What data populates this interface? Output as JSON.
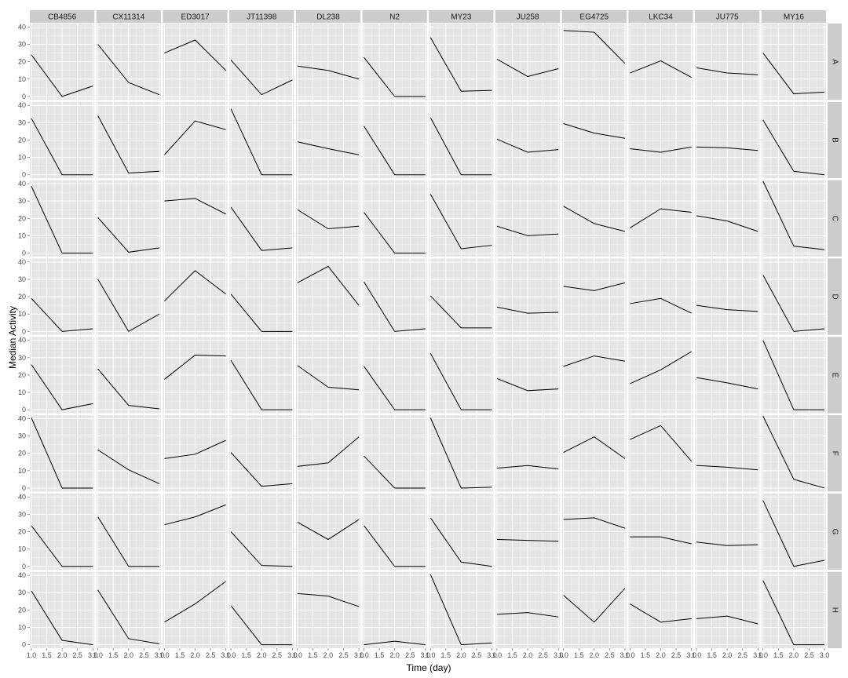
{
  "chart_data": {
    "type": "line",
    "facet_layout": "grid",
    "x": [
      1,
      2,
      3
    ],
    "xlim": [
      0.95,
      3.05
    ],
    "ylim": [
      -2,
      42
    ],
    "xticks": [
      1.0,
      1.5,
      2.0,
      2.5,
      3.0
    ],
    "xtick_labels": [
      "1.0",
      "1.5",
      "2.0",
      "2.5",
      "3.0"
    ],
    "yticks": [
      0,
      10,
      20,
      30,
      40
    ],
    "ytick_labels": [
      "0",
      "10",
      "20",
      "30",
      "40"
    ],
    "xlabel": "Time (day)",
    "ylabel": "Median Activity",
    "grid": true,
    "col_facets": [
      "CB4856",
      "CX11314",
      "ED3017",
      "JT11398",
      "DL238",
      "N2",
      "MY23",
      "JU258",
      "EG4725",
      "LKC34",
      "JU775",
      "MY16"
    ],
    "row_facets": [
      "A",
      "B",
      "C",
      "D",
      "E",
      "F",
      "G",
      "H"
    ],
    "panels": [
      [
        [
          24,
          0,
          6
        ],
        [
          30,
          8,
          1
        ],
        [
          25,
          32.5,
          15
        ],
        [
          21,
          1,
          9.5
        ],
        [
          17.5,
          15,
          10
        ],
        [
          22.5,
          0,
          0
        ],
        [
          34,
          3,
          3.5
        ],
        [
          21.5,
          11.5,
          16
        ],
        [
          38,
          37,
          19
        ],
        [
          13.5,
          20.5,
          11
        ],
        [
          16.5,
          13.5,
          12.5
        ],
        [
          25,
          1.5,
          2.5
        ]
      ],
      [
        [
          32.5,
          0,
          0
        ],
        [
          34,
          1,
          2
        ],
        [
          11.5,
          31,
          26
        ],
        [
          38,
          0,
          0
        ],
        [
          19,
          15,
          11.5
        ],
        [
          28,
          0,
          0
        ],
        [
          33,
          0,
          0
        ],
        [
          20.5,
          13,
          14.5
        ],
        [
          29.5,
          24,
          21
        ],
        [
          15,
          13,
          16
        ],
        [
          16,
          15.5,
          14
        ],
        [
          31.5,
          2,
          0
        ]
      ],
      [
        [
          38.5,
          0,
          0
        ],
        [
          20.5,
          0.5,
          3
        ],
        [
          30,
          31.5,
          22.5
        ],
        [
          26.5,
          1.5,
          3
        ],
        [
          25,
          14,
          15.5
        ],
        [
          23.5,
          0,
          0
        ],
        [
          34,
          2.5,
          4.5
        ],
        [
          15.5,
          10,
          11
        ],
        [
          27,
          17,
          12.5
        ],
        [
          14.5,
          25.5,
          23.5
        ],
        [
          21.5,
          18.5,
          12.5
        ],
        [
          41.5,
          4,
          2
        ]
      ],
      [
        [
          19,
          0,
          1.5
        ],
        [
          30,
          0,
          10
        ],
        [
          17.5,
          35,
          21.5
        ],
        [
          21.5,
          0,
          0
        ],
        [
          28,
          37.5,
          15
        ],
        [
          28.5,
          0,
          1.5
        ],
        [
          20.5,
          2,
          2
        ],
        [
          14,
          10.5,
          11
        ],
        [
          26,
          23.5,
          28
        ],
        [
          16,
          19,
          10.5
        ],
        [
          15,
          12.5,
          11.5
        ],
        [
          32.5,
          0,
          1.5
        ]
      ],
      [
        [
          26,
          0,
          3.5
        ],
        [
          23.5,
          2.5,
          0.5
        ],
        [
          17.5,
          31.5,
          31
        ],
        [
          28.5,
          0,
          0
        ],
        [
          25.5,
          13,
          11.5
        ],
        [
          25,
          0,
          0
        ],
        [
          32.5,
          0,
          0
        ],
        [
          18,
          11,
          12
        ],
        [
          25,
          31,
          28
        ],
        [
          15,
          23,
          33.5
        ],
        [
          18.5,
          15.5,
          12
        ],
        [
          40,
          0,
          0
        ]
      ],
      [
        [
          40.5,
          0,
          0
        ],
        [
          22,
          10.5,
          2.5
        ],
        [
          17,
          19.5,
          27.5
        ],
        [
          20.5,
          1,
          2.5
        ],
        [
          12.5,
          14.5,
          29.5
        ],
        [
          18.5,
          0,
          0
        ],
        [
          40.5,
          0,
          0.5
        ],
        [
          11.5,
          13,
          11
        ],
        [
          20.5,
          29.5,
          17
        ],
        [
          28,
          36,
          15.5
        ],
        [
          13,
          12,
          10.5
        ],
        [
          41.5,
          5,
          0
        ]
      ],
      [
        [
          23.5,
          0,
          0
        ],
        [
          28.5,
          0,
          0
        ],
        [
          24,
          28.5,
          35.5
        ],
        [
          20,
          0.5,
          0
        ],
        [
          25.5,
          15.5,
          27
        ],
        [
          23.5,
          0,
          0
        ],
        [
          28,
          2.5,
          0
        ],
        [
          15.5,
          15,
          14.5
        ],
        [
          27,
          28,
          22
        ],
        [
          17,
          17,
          13
        ],
        [
          14,
          12,
          12.5
        ],
        [
          38,
          0,
          3.5
        ]
      ],
      [
        [
          31,
          2.5,
          0
        ],
        [
          31.5,
          3.5,
          0.5
        ],
        [
          13,
          23.5,
          36.5
        ],
        [
          22.5,
          0,
          0
        ],
        [
          29.5,
          28,
          22
        ],
        [
          0,
          2,
          0
        ],
        [
          40.5,
          0,
          1
        ],
        [
          17.5,
          18.5,
          16
        ],
        [
          28.5,
          13,
          32.5
        ],
        [
          23.5,
          13,
          15
        ],
        [
          15,
          16.5,
          12
        ],
        [
          37,
          0,
          0
        ]
      ]
    ]
  }
}
